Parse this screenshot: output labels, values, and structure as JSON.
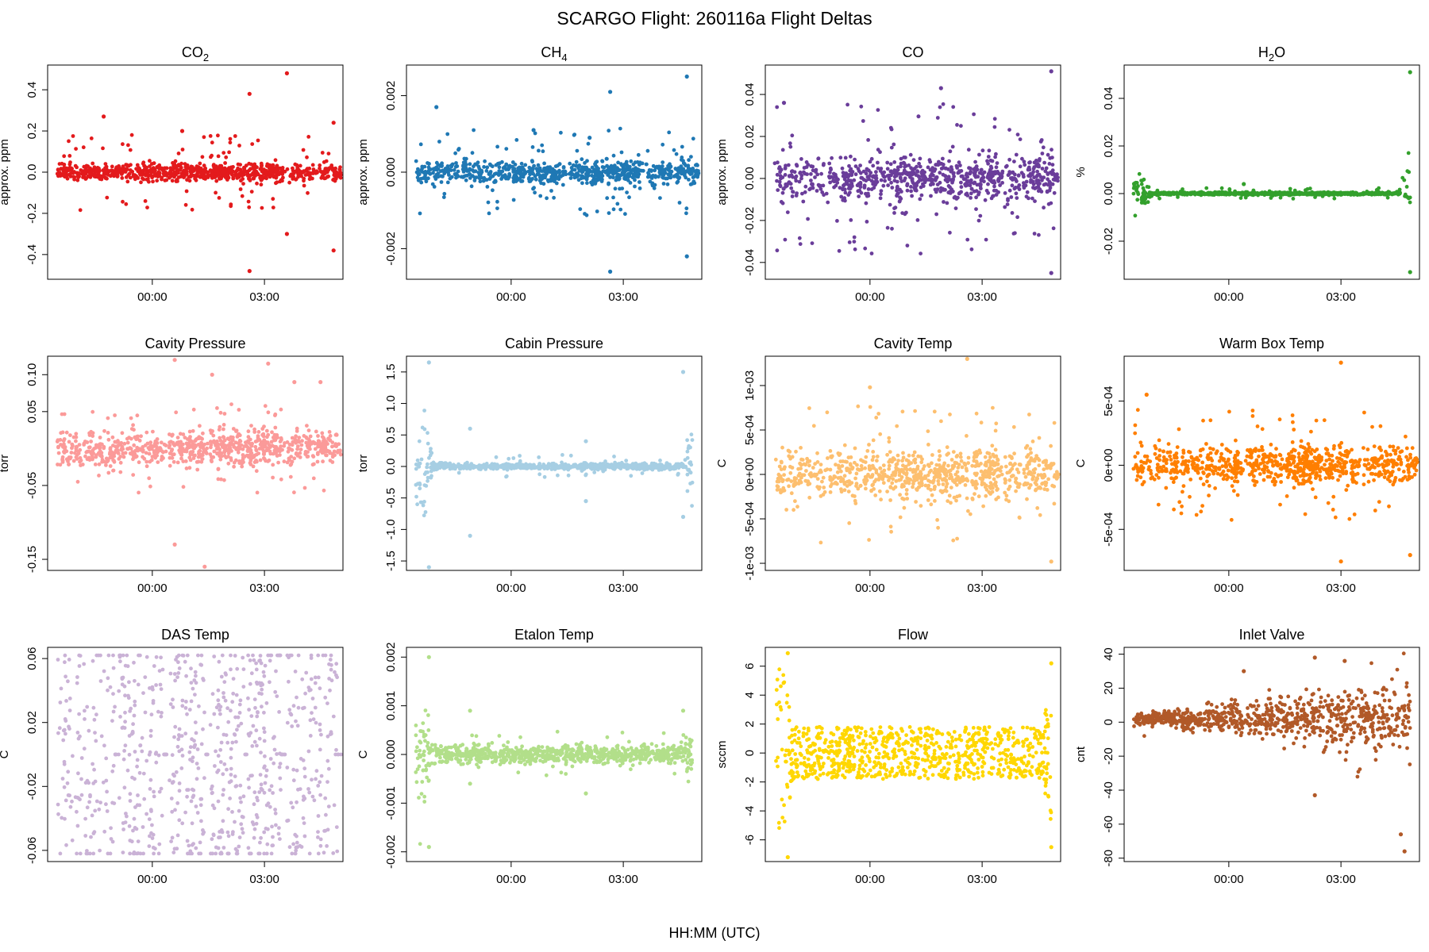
{
  "figure": {
    "title": "SCARGO Flight: 260116a  Flight Deltas",
    "xlabel": "HH:MM (UTC)"
  },
  "chart_data": [
    {
      "type": "scatter",
      "name": "CO2",
      "title_base": "CO",
      "title_sub": "2",
      "ylabel": "approx. ppm",
      "color": "#e31a1c",
      "ylim": [
        -0.52,
        0.52
      ],
      "yticks": [
        -0.4,
        -0.2,
        0.0,
        0.2,
        0.4
      ],
      "ytick_labels": [
        "-0.4",
        "-0.2",
        "0.0",
        "0.2",
        "0.4"
      ],
      "xlim": [
        -2.8,
        5.1
      ],
      "xticks": [
        0,
        3
      ],
      "xtick_labels": [
        "00:00",
        "03:00"
      ],
      "pattern": "blocks",
      "band": 0.065,
      "out": 0.12,
      "maxv": 0.25,
      "gapAmp": 0.05,
      "spikes": [
        [
          2.6,
          0.38
        ],
        [
          2.6,
          -0.48
        ],
        [
          3.6,
          0.48
        ],
        [
          3.6,
          -0.3
        ],
        [
          4.85,
          0.24
        ],
        [
          4.85,
          -0.38
        ],
        [
          -1.3,
          0.27
        ],
        [
          0.8,
          0.2
        ]
      ]
    },
    {
      "type": "scatter",
      "name": "CH4",
      "title_base": "CH",
      "title_sub": "4",
      "ylabel": "approx. ppm",
      "color": "#1f78b4",
      "ylim": [
        -0.0028,
        0.0028
      ],
      "yticks": [
        -0.002,
        0.0,
        0.002
      ],
      "ytick_labels": [
        "-0.002",
        "0.000",
        "0.002"
      ],
      "xlim": [
        -2.8,
        5.1
      ],
      "xticks": [
        0,
        3
      ],
      "xtick_labels": [
        "00:00",
        "03:00"
      ],
      "pattern": "blocks",
      "band": 0.00045,
      "out": 0.0007,
      "maxv": 0.0012,
      "gapAmp": 0.0003,
      "spikes": [
        [
          2.65,
          0.0021
        ],
        [
          2.65,
          -0.0026
        ],
        [
          4.7,
          0.0025
        ],
        [
          4.7,
          -0.0022
        ],
        [
          -2.0,
          0.0017
        ],
        [
          0.6,
          0.0011
        ],
        [
          2.1,
          0.0009
        ]
      ]
    },
    {
      "type": "scatter",
      "name": "CO",
      "title_base": "CO",
      "title_sub": "",
      "ylabel": "approx. ppm",
      "color": "#6a3d9a",
      "ylim": [
        -0.048,
        0.054
      ],
      "yticks": [
        -0.04,
        -0.02,
        0.0,
        0.02,
        0.04
      ],
      "ytick_labels": [
        "-0.04",
        "-0.02",
        "0.00",
        "0.02",
        "0.04"
      ],
      "xlim": [
        -2.8,
        5.1
      ],
      "xticks": [
        0,
        3
      ],
      "xtick_labels": [
        "00:00",
        "03:00"
      ],
      "pattern": "blocks",
      "band": 0.016,
      "out": 0.02,
      "maxv": 0.034,
      "gapAmp": 0.006,
      "spikes": [
        [
          4.85,
          0.051
        ],
        [
          4.85,
          -0.045
        ],
        [
          1.9,
          0.043
        ],
        [
          -2.3,
          0.036
        ]
      ]
    },
    {
      "type": "scatter",
      "name": "H2O",
      "title_base": "H",
      "title_sub": "2",
      "title_tail": "O",
      "ylabel": "%",
      "color": "#33a02c",
      "ylim": [
        -0.036,
        0.054
      ],
      "yticks": [
        -0.02,
        0.0,
        0.02,
        0.04
      ],
      "ytick_labels": [
        "-0.02",
        "0.00",
        "0.02",
        "0.04"
      ],
      "xlim": [
        -2.8,
        5.1
      ],
      "xticks": [
        0,
        3
      ],
      "xtick_labels": [
        "00:00",
        "03:00"
      ],
      "pattern": "flat",
      "band": 0.0008,
      "out": 0.0015,
      "maxv": 0.004,
      "edgeL": 0.013,
      "edgeR": 0.034,
      "spikes": [
        [
          4.85,
          0.051
        ],
        [
          4.85,
          -0.033
        ],
        [
          0.4,
          0.004
        ]
      ]
    },
    {
      "type": "scatter",
      "name": "Cavity Pressure",
      "title_base": "Cavity Pressure",
      "title_sub": "",
      "ylabel": "torr",
      "color": "#fb9a99",
      "ylim": [
        -0.165,
        0.125
      ],
      "yticks": [
        -0.15,
        -0.05,
        0.05,
        0.1
      ],
      "ytick_labels": [
        "-0.15",
        "-0.05",
        "0.05",
        "0.10"
      ],
      "xlim": [
        -2.8,
        5.1
      ],
      "xticks": [
        0,
        3
      ],
      "xtick_labels": [
        "00:00",
        "03:00"
      ],
      "pattern": "blocks",
      "band": 0.035,
      "out": 0.025,
      "maxv": 0.075,
      "gapAmp": 0.02,
      "spikes": [
        [
          0.6,
          0.12
        ],
        [
          0.6,
          -0.13
        ],
        [
          1.4,
          -0.16
        ],
        [
          3.1,
          0.115
        ],
        [
          1.6,
          0.1
        ],
        [
          3.8,
          0.09
        ],
        [
          4.5,
          0.09
        ]
      ]
    },
    {
      "type": "scatter",
      "name": "Cabin Pressure",
      "title_base": "Cabin Pressure",
      "title_sub": "",
      "ylabel": "torr",
      "color": "#a6cee3",
      "ylim": [
        -1.65,
        1.75
      ],
      "yticks": [
        -1.5,
        -1.0,
        -0.5,
        0.0,
        0.5,
        1.0,
        1.5
      ],
      "ytick_labels": [
        "-1.5",
        "-1.0",
        "-0.5",
        "0.0",
        "0.5",
        "1.0",
        "1.5"
      ],
      "xlim": [
        -2.8,
        5.1
      ],
      "xticks": [
        0,
        3
      ],
      "xtick_labels": [
        "00:00",
        "03:00"
      ],
      "pattern": "flat",
      "band": 0.07,
      "out": 0.12,
      "maxv": 0.25,
      "edgeL": 1.5,
      "edgeR": 1.4,
      "spikes": [
        [
          -2.2,
          1.65
        ],
        [
          -2.2,
          -1.6
        ],
        [
          -1.1,
          0.6
        ],
        [
          -1.1,
          -1.1
        ],
        [
          2.0,
          0.4
        ],
        [
          2.0,
          -0.55
        ],
        [
          4.6,
          1.5
        ],
        [
          4.6,
          -0.8
        ]
      ]
    },
    {
      "type": "scatter",
      "name": "Cavity Temp",
      "title_base": "Cavity Temp",
      "title_sub": "",
      "ylabel": "C",
      "color": "#fdbf6f",
      "ylim": [
        -0.00108,
        0.00133
      ],
      "yticks": [
        -0.001,
        -0.0005,
        0.0,
        0.0005,
        0.001
      ],
      "ytick_labels": [
        "-1e-03",
        "-5e-04",
        "0e+00",
        "5e-04",
        "1e-03"
      ],
      "xlim": [
        -2.8,
        5.1
      ],
      "xticks": [
        0,
        3
      ],
      "xtick_labels": [
        "00:00",
        "03:00"
      ],
      "pattern": "blocks",
      "band": 0.00042,
      "out": 0.00035,
      "maxv": 0.00085,
      "gapAmp": 0.0002,
      "spikes": [
        [
          2.6,
          0.0013
        ],
        [
          0.0,
          0.00098
        ],
        [
          4.85,
          -0.00098
        ]
      ]
    },
    {
      "type": "scatter",
      "name": "Warm Box Temp",
      "title_base": "Warm Box Temp",
      "title_sub": "",
      "ylabel": "C",
      "color": "#ff7f00",
      "ylim": [
        -0.00082,
        0.00085
      ],
      "yticks": [
        -0.0005,
        0.0,
        0.0005
      ],
      "ytick_labels": [
        "-5e-04",
        "0e+00",
        "5e-04"
      ],
      "xlim": [
        -2.8,
        5.1
      ],
      "xticks": [
        0,
        3
      ],
      "xtick_labels": [
        "00:00",
        "03:00"
      ],
      "pattern": "blocks",
      "band": 0.00022,
      "out": 0.00022,
      "maxv": 0.00055,
      "gapAmp": 0.0001,
      "spikes": [
        [
          3.0,
          0.0008
        ],
        [
          3.0,
          -0.00075
        ],
        [
          4.85,
          -0.0007
        ],
        [
          -2.2,
          0.00055
        ]
      ]
    },
    {
      "type": "scatter",
      "name": "DAS Temp",
      "title_base": "DAS Temp",
      "title_sub": "",
      "ylabel": "C",
      "color": "#cab2d6",
      "ylim": [
        -0.067,
        0.067
      ],
      "yticks": [
        -0.06,
        -0.02,
        0.02,
        0.06
      ],
      "ytick_labels": [
        "-0.06",
        "-0.02",
        "0.02",
        "0.06"
      ],
      "xlim": [
        -2.8,
        5.1
      ],
      "xticks": [
        0,
        3
      ],
      "xtick_labels": [
        "00:00",
        "03:00"
      ],
      "pattern": "das",
      "band": 0.062,
      "out": 0.0,
      "maxv": 0.062,
      "gapAmp": 0.0,
      "spikes": []
    },
    {
      "type": "scatter",
      "name": "Etalon Temp",
      "title_base": "Etalon Temp",
      "title_sub": "",
      "ylabel": "C",
      "color": "#b2df8a",
      "ylim": [
        -0.0022,
        0.0022
      ],
      "yticks": [
        -0.002,
        -0.001,
        0.0,
        0.001,
        0.002
      ],
      "ytick_labels": [
        "-0.002",
        "-0.001",
        "0.000",
        "0.001",
        "0.002"
      ],
      "xlim": [
        -2.8,
        5.1
      ],
      "xticks": [
        0,
        3
      ],
      "xtick_labels": [
        "00:00",
        "03:00"
      ],
      "pattern": "flat",
      "band": 0.00028,
      "out": 0.0002,
      "maxv": 0.0005,
      "edgeL": 0.0018,
      "edgeR": 0.0009,
      "spikes": [
        [
          -2.2,
          0.002
        ],
        [
          -2.2,
          -0.0019
        ],
        [
          -1.1,
          0.0009
        ],
        [
          -1.1,
          -0.0006
        ],
        [
          2.0,
          -0.0008
        ],
        [
          4.6,
          0.0009
        ]
      ]
    },
    {
      "type": "scatter",
      "name": "Flow",
      "title_base": "Flow",
      "title_sub": "",
      "ylabel": "sccm",
      "color": "#ffd700",
      "ylim": [
        -7.5,
        7.3
      ],
      "yticks": [
        -6,
        -4,
        -2,
        0,
        2,
        4,
        6
      ],
      "ytick_labels": [
        "-6",
        "-4",
        "-2",
        "0",
        "2",
        "4",
        "6"
      ],
      "xlim": [
        -2.8,
        5.1
      ],
      "xticks": [
        0,
        3
      ],
      "xtick_labels": [
        "00:00",
        "03:00"
      ],
      "pattern": "flow",
      "band": 1.8,
      "out": 0.3,
      "maxv": 2.2,
      "edgeL": 6.8,
      "edgeR": 6.2,
      "spikes": [
        [
          -2.2,
          6.9
        ],
        [
          -2.2,
          -7.2
        ],
        [
          4.85,
          6.2
        ],
        [
          4.85,
          -6.5
        ]
      ]
    },
    {
      "type": "scatter",
      "name": "Inlet Valve",
      "title_base": "Inlet Valve",
      "title_sub": "",
      "ylabel": "cnt",
      "color": "#b15928",
      "ylim": [
        -82,
        44
      ],
      "yticks": [
        -80,
        -60,
        -40,
        -20,
        0,
        20,
        40
      ],
      "ytick_labels": [
        "-80",
        "-60",
        "-40",
        "-20",
        "0",
        "20",
        "40"
      ],
      "xlim": [
        -2.8,
        5.1
      ],
      "xticks": [
        0,
        3
      ],
      "xtick_labels": [
        "00:00",
        "03:00"
      ],
      "pattern": "valve",
      "band": 8,
      "out": 10,
      "maxv": 38,
      "gapAmp": 0,
      "spikes": [
        [
          2.3,
          38
        ],
        [
          2.3,
          -43
        ],
        [
          4.7,
          -76
        ],
        [
          4.6,
          -66
        ],
        [
          0.4,
          30
        ],
        [
          3.1,
          36
        ]
      ]
    }
  ]
}
